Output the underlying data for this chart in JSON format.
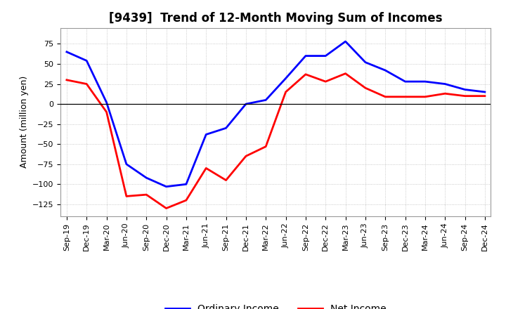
{
  "title": "[9439]  Trend of 12-Month Moving Sum of Incomes",
  "ylabel": "Amount (million yen)",
  "background_color": "#ffffff",
  "grid_color": "#aaaaaa",
  "x_labels": [
    "Sep-19",
    "Dec-19",
    "Mar-20",
    "Jun-20",
    "Sep-20",
    "Dec-20",
    "Mar-21",
    "Jun-21",
    "Sep-21",
    "Dec-21",
    "Mar-22",
    "Jun-22",
    "Sep-22",
    "Dec-22",
    "Mar-23",
    "Jun-23",
    "Sep-23",
    "Dec-23",
    "Mar-24",
    "Jun-24",
    "Sep-24",
    "Dec-24"
  ],
  "ordinary_income": [
    65,
    54,
    2,
    -75,
    -92,
    -103,
    -100,
    -38,
    -30,
    0,
    5,
    32,
    60,
    60,
    78,
    52,
    42,
    28,
    28,
    25,
    18,
    15
  ],
  "net_income": [
    30,
    25,
    -10,
    -115,
    -113,
    -130,
    -120,
    -80,
    -95,
    -65,
    -53,
    15,
    37,
    28,
    38,
    20,
    9,
    9,
    9,
    13,
    10,
    10
  ],
  "ordinary_color": "#0000ff",
  "net_color": "#ff0000",
  "ylim": [
    -140,
    95
  ],
  "yticks": [
    -125,
    -100,
    -75,
    -50,
    -25,
    0,
    25,
    50,
    75
  ],
  "line_width": 2.0,
  "title_fontsize": 12,
  "legend_fontsize": 10,
  "tick_fontsize": 8
}
